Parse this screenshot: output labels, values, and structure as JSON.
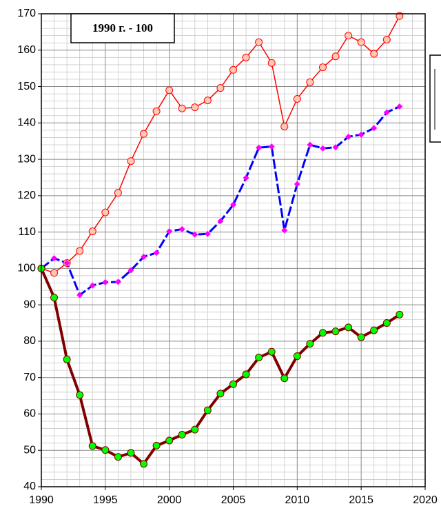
{
  "chart_data": {
    "type": "line",
    "annotation": "1990 г. - 100",
    "x": [
      1990,
      1991,
      1992,
      1993,
      1994,
      1995,
      1996,
      1997,
      1998,
      1999,
      2000,
      2001,
      2002,
      2003,
      2004,
      2005,
      2006,
      2007,
      2008,
      2009,
      2010,
      2011,
      2012,
      2013,
      2014,
      2015,
      2016,
      2017,
      2018
    ],
    "series": [
      {
        "color": "#ff0000",
        "marker_color": "#ffc8b4",
        "marker": "circle",
        "dashed": false,
        "width": 1.5,
        "values": [
          100,
          98.8,
          101.5,
          104.8,
          110.2,
          115.4,
          120.8,
          129.5,
          137,
          143.2,
          149,
          144,
          144.3,
          146.2,
          149.6,
          154.6,
          158,
          162.2,
          156.5,
          139,
          146.6,
          151.2,
          155.3,
          158.3,
          164,
          162.2,
          159,
          162.9,
          169.4
        ]
      },
      {
        "color": "#0000ff",
        "marker_color": "#ff00ff",
        "marker": "diamond",
        "dashed": true,
        "width": 3,
        "values": [
          100,
          102.8,
          101.5,
          92.7,
          95.3,
          96.2,
          96.3,
          99.5,
          103.2,
          104.3,
          110.2,
          110.8,
          109.3,
          109.5,
          113,
          117.5,
          124.9,
          133.2,
          133.5,
          110.5,
          123.2,
          134,
          133,
          133.3,
          136.2,
          136.8,
          138.6,
          142.9,
          144.5
        ]
      },
      {
        "color": "#800000",
        "marker_color": "#00ff00",
        "marker": "circle",
        "dashed": false,
        "width": 4,
        "values": [
          100,
          92,
          75,
          65.2,
          51.2,
          50.1,
          48.2,
          49.3,
          46.3,
          51.3,
          52.7,
          54.3,
          55.7,
          61,
          65.6,
          68.2,
          70.9,
          75.5,
          77.1,
          69.8,
          75.9,
          79.3,
          82.3,
          82.7,
          83.8,
          81.1,
          83,
          85,
          87.3
        ]
      }
    ],
    "xlim": [
      1990,
      2020
    ],
    "xticks": [
      1990,
      1995,
      2000,
      2005,
      2010,
      2015,
      2020
    ],
    "ylim": [
      40,
      170
    ],
    "yticks": [
      40,
      50,
      60,
      70,
      80,
      90,
      100,
      110,
      120,
      130,
      140,
      150,
      160,
      170
    ],
    "minor_xticks": [
      1991,
      1992,
      1993,
      1994,
      1996,
      1997,
      1998,
      1999,
      2001,
      2002,
      2003,
      2004,
      2006,
      2007,
      2008,
      2009,
      2011,
      2012,
      2013,
      2014,
      2016,
      2017,
      2018,
      2019
    ],
    "minor_yticks": [
      42,
      44,
      46,
      48,
      52,
      54,
      56,
      58,
      62,
      64,
      66,
      68,
      72,
      74,
      76,
      78,
      82,
      84,
      86,
      88,
      92,
      94,
      96,
      98,
      102,
      104,
      106,
      108,
      112,
      114,
      116,
      118,
      122,
      124,
      126,
      128,
      132,
      134,
      136,
      138,
      142,
      144,
      146,
      148,
      152,
      154,
      156,
      158,
      162,
      164,
      166,
      168
    ],
    "grid": true
  }
}
